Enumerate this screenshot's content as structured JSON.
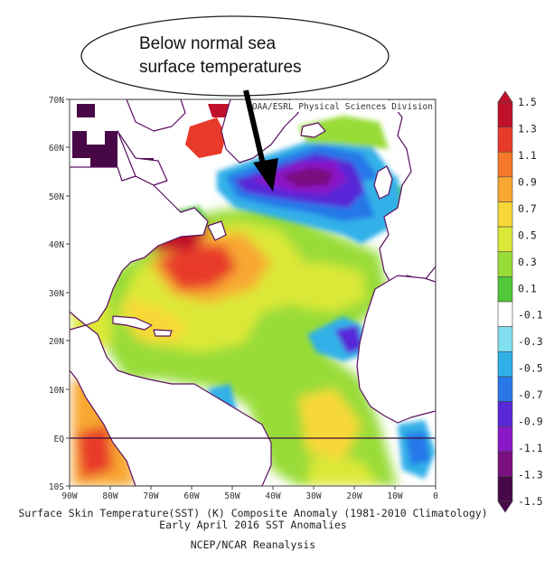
{
  "callout": {
    "line1": "Below normal sea",
    "line2": "surface temperatures"
  },
  "map": {
    "credit": "NOAA/ESRL Physical Sciences Division",
    "lat_labels": [
      "70N",
      "60N",
      "50N",
      "40N",
      "30N",
      "20N",
      "10N",
      "EQ",
      "10S"
    ],
    "lon_labels": [
      "90W",
      "80W",
      "70W",
      "60W",
      "50W",
      "40W",
      "30W",
      "20W",
      "10W",
      "0"
    ]
  },
  "colorbar": {
    "labels": [
      "1.5",
      "1.3",
      "1.1",
      "0.9",
      "0.7",
      "0.5",
      "0.3",
      "0.1",
      "-0.1",
      "-0.3",
      "-0.5",
      "-0.7",
      "-0.9",
      "-1.1",
      "-1.3",
      "-1.5"
    ],
    "colors": [
      "#c0102a",
      "#e83a2a",
      "#f5782a",
      "#f8a830",
      "#f8d838",
      "#dce838",
      "#98dc38",
      "#50c838",
      "#ffffff",
      "#80e0f0",
      "#30b0e8",
      "#2878e8",
      "#5828d8",
      "#8a18c8",
      "#7a1080",
      "#480848"
    ]
  },
  "caption": {
    "line1": "Surface Skin Temperature(SST) (K) Composite Anomaly (1981-2010 Climatology)",
    "line2": "Early April 2016 SST Anomalies",
    "line3": "NCEP/NCAR Reanalysis"
  }
}
